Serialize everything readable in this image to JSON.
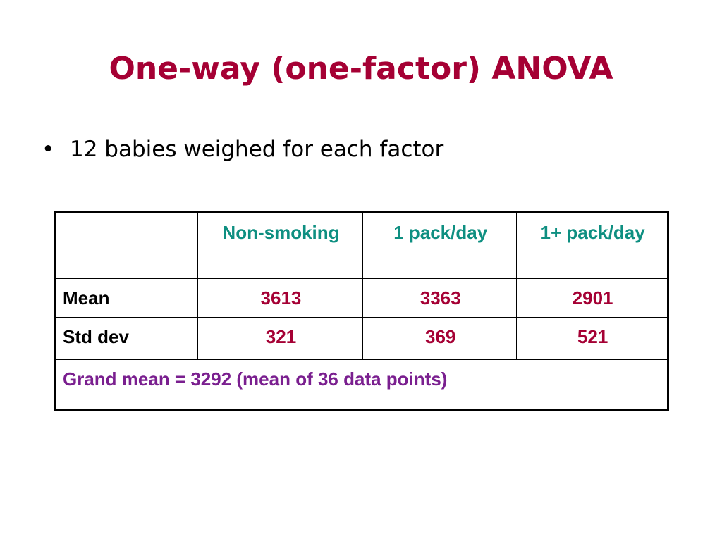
{
  "slide": {
    "title": "One-way (one-factor) ANOVA",
    "bullet_symbol": "•",
    "bullet_text": "12 babies weighed for each factor"
  },
  "table": {
    "headers": [
      "",
      "Non-smoking",
      "1 pack/day",
      "1+ pack/day"
    ],
    "rows": [
      {
        "label": "Mean",
        "values": [
          "3613",
          "3363",
          "2901"
        ]
      },
      {
        "label": "Std dev",
        "values": [
          "321",
          "369",
          "521"
        ]
      }
    ],
    "footer": "Grand mean = 3292 (mean of 36 data points)"
  },
  "colors": {
    "title": "#a50034",
    "header_text": "#0e8f81",
    "value_text": "#a50034",
    "footer_text": "#7a1f8f",
    "border": "#000000"
  }
}
